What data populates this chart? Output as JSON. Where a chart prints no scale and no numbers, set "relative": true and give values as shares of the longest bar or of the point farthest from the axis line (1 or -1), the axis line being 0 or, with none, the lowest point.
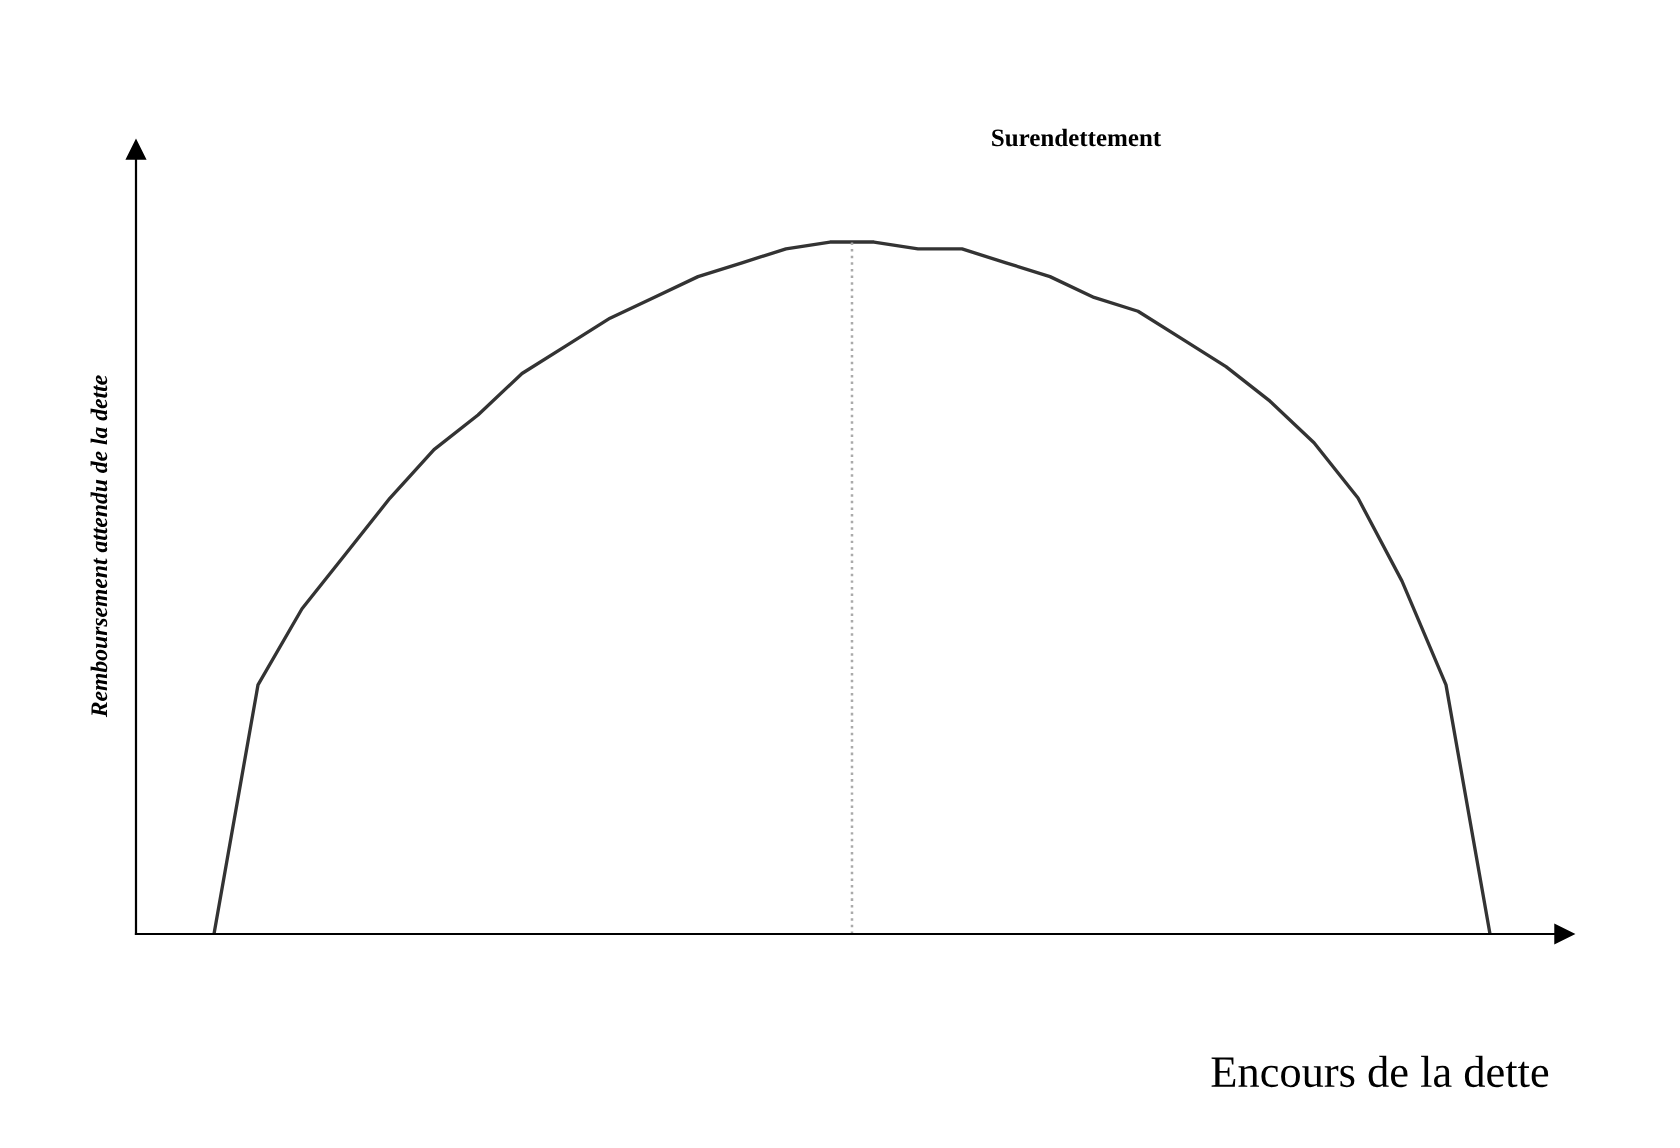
{
  "chart_data": {
    "type": "line",
    "relative": true,
    "xlabel": "Encours de la dette",
    "ylabel": "Remboursement attendu de la dette",
    "annotations": [
      "Surendettement"
    ],
    "categories": [
      null,
      null,
      null,
      null,
      null,
      null,
      null,
      null,
      null,
      null,
      null,
      null,
      null,
      null,
      null,
      null,
      null,
      null,
      null,
      null,
      null,
      null,
      null,
      null,
      null,
      null,
      null,
      null,
      null,
      null
    ],
    "series": [
      {
        "color": "#333333",
        "values": [
          0,
          0.36,
          0.47,
          0.55,
          0.63,
          0.7,
          0.75,
          0.81,
          0.85,
          0.89,
          0.92,
          0.95,
          0.97,
          0.99,
          1.0,
          1.0,
          0.99,
          0.99,
          0.97,
          0.95,
          0.92,
          0.9,
          0.86,
          0.82,
          0.77,
          0.71,
          0.63,
          0.51,
          0.36,
          0
        ]
      }
    ],
    "legend": false,
    "marker": "none",
    "line_style": "solid"
  }
}
